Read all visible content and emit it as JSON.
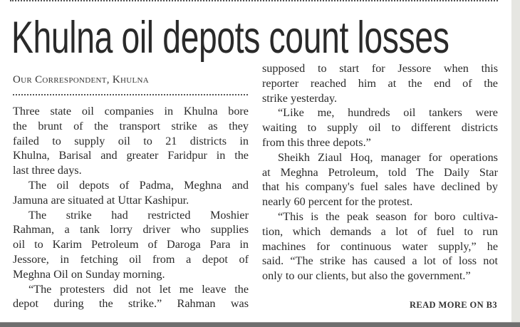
{
  "article": {
    "headline": "Khulna oil depots count losses",
    "byline": "Our Correspondent, Khulna",
    "left_column": [
      [
        "Three state oil companies in Khulna bore",
        "the brunt of the transport strike as they",
        "failed to supply oil to 21 districts in",
        "Khulna, Barisal and greater Faridpur in the",
        "last three days."
      ],
      [
        "The oil depots of Padma, Meghna and",
        "Jamuna are situated at Uttar Kashipur."
      ],
      [
        "The strike had restricted Moshier",
        "Rahman, a tank lorry driver who supplies",
        "oil to Karim Petroleum of Daroga Para in",
        "Jessore, in fetching oil from a depot of",
        "Meghna Oil on Sunday morning."
      ],
      [
        "“The protesters did not let me leave the",
        "depot during the strike.” Rahman was"
      ]
    ],
    "right_column": [
      [
        "supposed to start for Jessore when this",
        "reporter reached him at the end of the",
        "strike yesterday."
      ],
      [
        "“Like me, hundreds oil tankers were",
        "waiting to supply oil to different districts",
        "from this three depots.”"
      ],
      [
        "Sheikh Ziaul Hoq, manager for operations",
        "at Meghna Petroleum, told The Daily Star",
        "that his company's fuel sales have declined by",
        "nearly 60 percent for the protest."
      ],
      [
        "“This is the peak season for boro cultiva-",
        "tion, which demands a lot of fuel to run",
        "machines for continuous water supply,” he",
        "said. “The strike has caused a lot of loss not",
        "only to our clients, but also the government.”"
      ]
    ],
    "read_more": "READ MORE ON B3"
  }
}
